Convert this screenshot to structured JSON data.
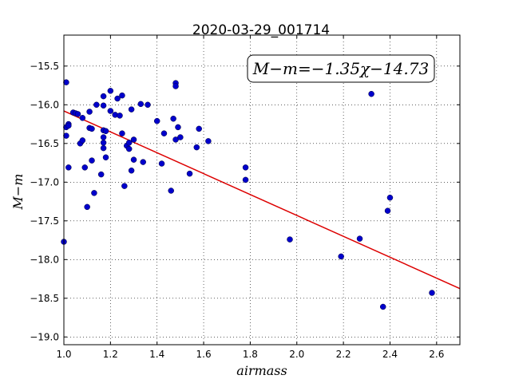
{
  "chart_data": {
    "type": "scatter",
    "title": "2020-03-29_001714",
    "xlabel": "airmass",
    "ylabel": "M−m",
    "xlim": [
      1.0,
      2.7
    ],
    "ylim": [
      -19.1,
      -15.1
    ],
    "y_inverted": true,
    "grid": true,
    "grid_style": "dotted",
    "x_ticks": [
      1.0,
      1.2,
      1.4,
      1.6,
      1.8,
      2.0,
      2.2,
      2.4,
      2.6
    ],
    "x_tick_labels": [
      "1.0",
      "1.2",
      "1.4",
      "1.6",
      "1.8",
      "2.0",
      "2.2",
      "2.4",
      "2.6"
    ],
    "y_ticks": [
      -15.5,
      -16.0,
      -16.5,
      -17.0,
      -17.5,
      -18.0,
      -18.5,
      -19.0
    ],
    "y_tick_labels": [
      "−15.5",
      "−16.0",
      "−16.5",
      "−17.0",
      "−17.5",
      "−18.0",
      "−18.5",
      "−19.0"
    ],
    "marker_color": "#0000cc",
    "fit_color": "#dd0000",
    "annotation": "M−m=−1.35χ−14.73",
    "fit": {
      "slope": -1.35,
      "intercept": -14.73
    },
    "points": [
      [
        1.0,
        -17.77
      ],
      [
        1.01,
        -15.71
      ],
      [
        1.01,
        -16.29
      ],
      [
        1.01,
        -16.4
      ],
      [
        1.02,
        -16.25
      ],
      [
        1.02,
        -16.27
      ],
      [
        1.02,
        -16.81
      ],
      [
        1.04,
        -16.1
      ],
      [
        1.05,
        -16.11
      ],
      [
        1.06,
        -16.12
      ],
      [
        1.07,
        -16.5
      ],
      [
        1.08,
        -16.17
      ],
      [
        1.08,
        -16.46
      ],
      [
        1.09,
        -16.81
      ],
      [
        1.1,
        -17.32
      ],
      [
        1.11,
        -16.09
      ],
      [
        1.11,
        -16.3
      ],
      [
        1.12,
        -16.72
      ],
      [
        1.12,
        -16.31
      ],
      [
        1.13,
        -17.14
      ],
      [
        1.14,
        -16.0
      ],
      [
        1.16,
        -16.9
      ],
      [
        1.17,
        -15.89
      ],
      [
        1.17,
        -16.01
      ],
      [
        1.17,
        -16.33
      ],
      [
        1.17,
        -16.42
      ],
      [
        1.17,
        -16.49
      ],
      [
        1.17,
        -16.56
      ],
      [
        1.18,
        -16.68
      ],
      [
        1.18,
        -16.34
      ],
      [
        1.2,
        -15.82
      ],
      [
        1.2,
        -16.08
      ],
      [
        1.22,
        -16.13
      ],
      [
        1.23,
        -15.92
      ],
      [
        1.24,
        -16.14
      ],
      [
        1.25,
        -15.88
      ],
      [
        1.25,
        -16.37
      ],
      [
        1.26,
        -17.05
      ],
      [
        1.27,
        -16.53
      ],
      [
        1.28,
        -16.49
      ],
      [
        1.28,
        -16.57
      ],
      [
        1.29,
        -16.06
      ],
      [
        1.29,
        -16.85
      ],
      [
        1.3,
        -16.71
      ],
      [
        1.3,
        -16.45
      ],
      [
        1.33,
        -15.99
      ],
      [
        1.34,
        -16.74
      ],
      [
        1.36,
        -16.0
      ],
      [
        1.4,
        -16.21
      ],
      [
        1.42,
        -16.76
      ],
      [
        1.43,
        -16.37
      ],
      [
        1.46,
        -17.11
      ],
      [
        1.47,
        -16.18
      ],
      [
        1.48,
        -15.72
      ],
      [
        1.48,
        -15.76
      ],
      [
        1.48,
        -16.45
      ],
      [
        1.49,
        -16.29
      ],
      [
        1.5,
        -16.42
      ],
      [
        1.54,
        -16.89
      ],
      [
        1.57,
        -16.55
      ],
      [
        1.58,
        -16.31
      ],
      [
        1.62,
        -16.47
      ],
      [
        1.78,
        -16.81
      ],
      [
        1.78,
        -16.97
      ],
      [
        1.97,
        -17.74
      ],
      [
        2.19,
        -17.96
      ],
      [
        2.27,
        -17.73
      ],
      [
        2.32,
        -15.86
      ],
      [
        2.37,
        -18.61
      ],
      [
        2.39,
        -17.37
      ],
      [
        2.4,
        -17.2
      ],
      [
        2.58,
        -18.43
      ]
    ]
  }
}
